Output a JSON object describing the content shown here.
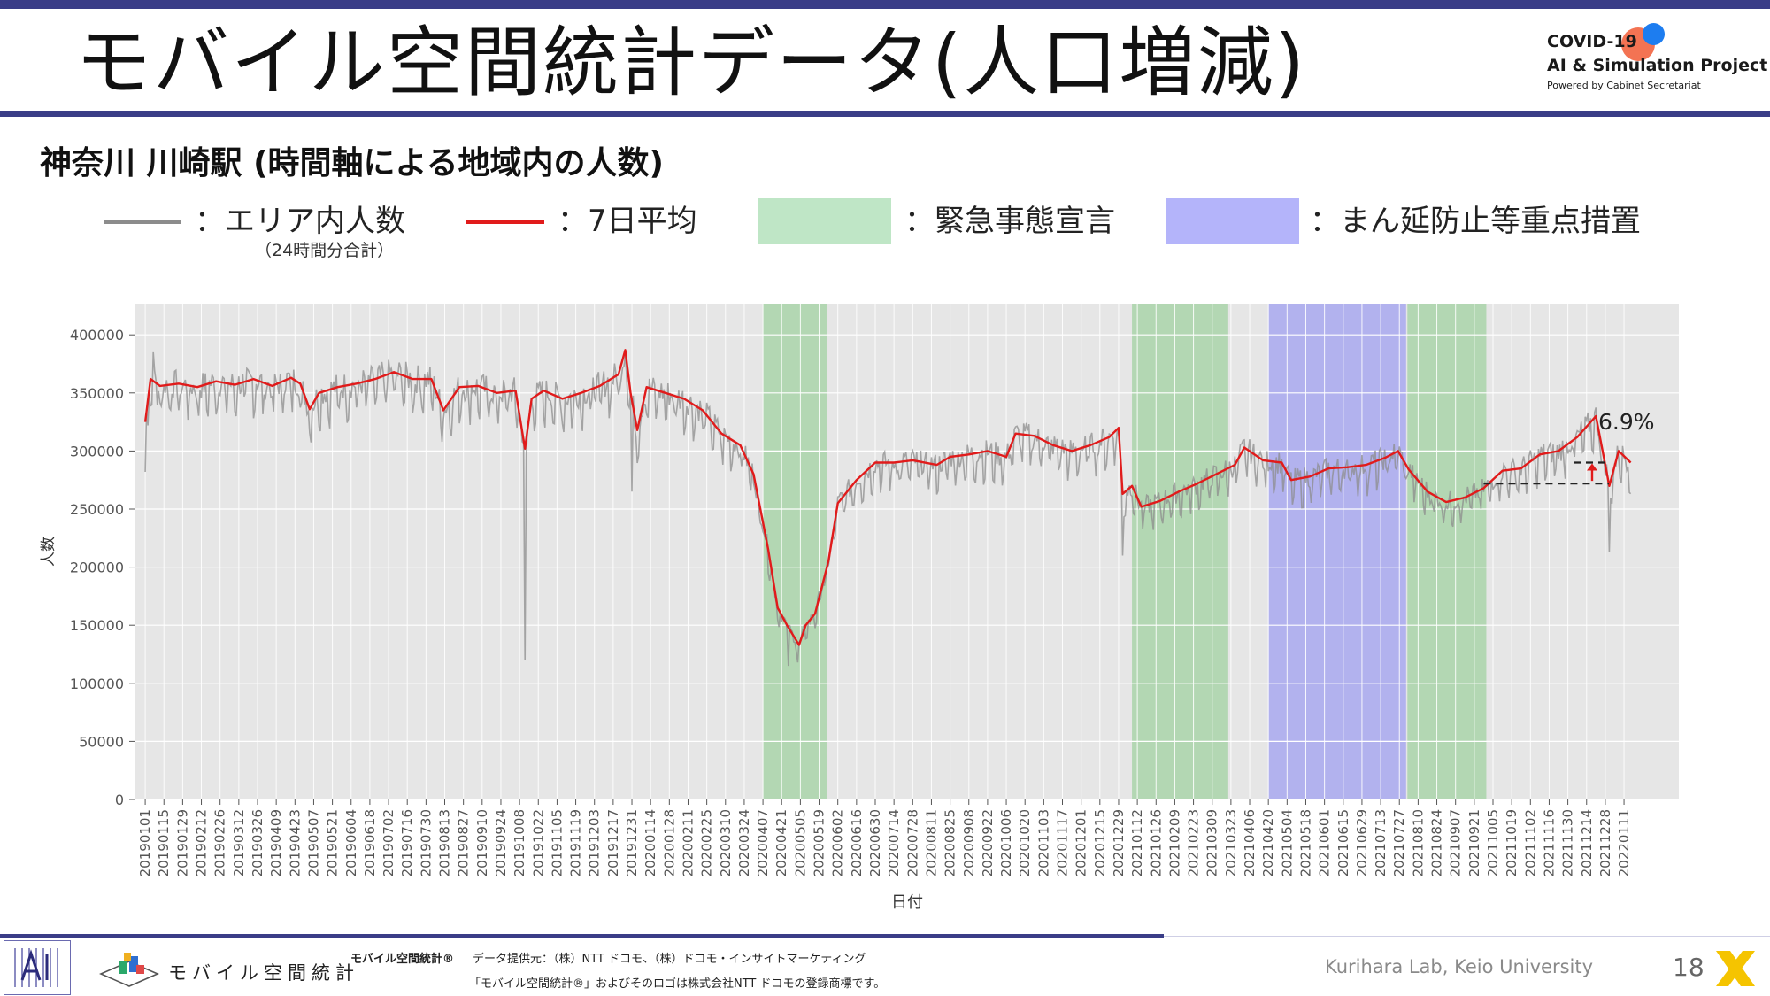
{
  "slide": {
    "title": "モバイル空間統計データ(人口増減)",
    "subtitle": "神奈川 川崎駅 (時間軸による地域内の人数)",
    "page_number": "18"
  },
  "project": {
    "line1": "COVID-19",
    "line2": "AI & Simulation Project",
    "line3": "Powered by Cabinet Secretariat"
  },
  "legend": {
    "raw_label": "：エリア内人数",
    "raw_note": "（24時間分合計）",
    "avg_label": "：7日平均",
    "emergency_label": "：緊急事態宣言",
    "priority_label": "：まん延防止等重点措置",
    "colors": {
      "raw": "#8c8c8c",
      "avg": "#e11b1b",
      "emergency": "#bfe6c6",
      "priority": "#b4b4fa"
    }
  },
  "footer": {
    "logo_text": "モバイル空間統計",
    "brand_small": "モバイル空間統計®",
    "data_source": "データ提供元：（株）NTT ドコモ、（株）ドコモ・インサイトマーケティング",
    "trademark": "「モバイル空間統計®」およびそのロゴは株式会社NTT ドコモの登録商標です。",
    "credit": "Kurihara Lab, Keio University"
  },
  "chart_data": {
    "type": "line",
    "title": "",
    "xlabel": "日付",
    "ylabel": "人数",
    "ylim": [
      0,
      425000
    ],
    "yticks": [
      0,
      50000,
      100000,
      150000,
      200000,
      250000,
      300000,
      350000,
      400000
    ],
    "ytick_labels": [
      "0",
      "50000",
      "100000",
      "150000",
      "200000",
      "250000",
      "300000",
      "350000",
      "400000"
    ],
    "xlim": [
      "2018-12-24",
      "2022-02-21"
    ],
    "xtick_labels": [
      "20190101",
      "20190115",
      "20190129",
      "20190212",
      "20190226",
      "20190312",
      "20190326",
      "20190409",
      "20190423",
      "20190507",
      "20190521",
      "20190604",
      "20190618",
      "20190702",
      "20190716",
      "20190730",
      "20190813",
      "20190827",
      "20190910",
      "20190924",
      "20191008",
      "20191022",
      "20191105",
      "20191119",
      "20191203",
      "20191217",
      "20191231",
      "20200114",
      "20200128",
      "20200211",
      "20200225",
      "20200310",
      "20200324",
      "20200407",
      "20200421",
      "20200505",
      "20200519",
      "20200602",
      "20200616",
      "20200630",
      "20200714",
      "20200728",
      "20200811",
      "20200825",
      "20200908",
      "20200922",
      "20201006",
      "20201020",
      "20201103",
      "20201117",
      "20201201",
      "20201215",
      "20201229",
      "20210112",
      "20210126",
      "20210209",
      "20210223",
      "20210309",
      "20210323",
      "20210406",
      "20210420",
      "20210504",
      "20210518",
      "20210601",
      "20210615",
      "20210629",
      "20210713",
      "20210727",
      "20210810",
      "20210824",
      "20210907",
      "20210921",
      "20211005",
      "20211019",
      "20211102",
      "20211116",
      "20211130",
      "20211214",
      "20211228",
      "20220111"
    ],
    "shaded_periods": [
      {
        "type": "emergency",
        "start": "2020-04-07",
        "end": "2020-05-25"
      },
      {
        "type": "emergency",
        "start": "2021-01-08",
        "end": "2021-03-21"
      },
      {
        "type": "priority",
        "start": "2021-04-20",
        "end": "2021-08-01"
      },
      {
        "type": "emergency",
        "start": "2021-08-02",
        "end": "2021-09-30"
      }
    ],
    "series": [
      {
        "kind": "avg",
        "points": [
          [
            "2019-01-01",
            325000
          ],
          [
            "2019-01-05",
            362000
          ],
          [
            "2019-01-12",
            356000
          ],
          [
            "2019-01-26",
            358000
          ],
          [
            "2019-02-09",
            355000
          ],
          [
            "2019-02-23",
            360000
          ],
          [
            "2019-03-09",
            357000
          ],
          [
            "2019-03-23",
            362000
          ],
          [
            "2019-04-06",
            356000
          ],
          [
            "2019-04-20",
            363000
          ],
          [
            "2019-04-27",
            358000
          ],
          [
            "2019-05-04",
            336000
          ],
          [
            "2019-05-11",
            350000
          ],
          [
            "2019-05-25",
            355000
          ],
          [
            "2019-06-08",
            358000
          ],
          [
            "2019-06-22",
            362000
          ],
          [
            "2019-07-06",
            368000
          ],
          [
            "2019-07-20",
            362000
          ],
          [
            "2019-08-03",
            362000
          ],
          [
            "2019-08-12",
            335000
          ],
          [
            "2019-08-24",
            355000
          ],
          [
            "2019-09-07",
            356000
          ],
          [
            "2019-09-21",
            350000
          ],
          [
            "2019-10-05",
            352000
          ],
          [
            "2019-10-12",
            302000
          ],
          [
            "2019-10-17",
            345000
          ],
          [
            "2019-10-26",
            352000
          ],
          [
            "2019-11-09",
            345000
          ],
          [
            "2019-11-23",
            350000
          ],
          [
            "2019-12-07",
            356000
          ],
          [
            "2019-12-21",
            366000
          ],
          [
            "2019-12-26",
            387000
          ],
          [
            "2019-12-30",
            350000
          ],
          [
            "2020-01-04",
            318000
          ],
          [
            "2020-01-11",
            355000
          ],
          [
            "2020-01-25",
            350000
          ],
          [
            "2020-02-08",
            345000
          ],
          [
            "2020-02-22",
            335000
          ],
          [
            "2020-03-07",
            315000
          ],
          [
            "2020-03-21",
            305000
          ],
          [
            "2020-03-31",
            280000
          ],
          [
            "2020-04-11",
            215000
          ],
          [
            "2020-04-18",
            165000
          ],
          [
            "2020-04-25",
            150000
          ],
          [
            "2020-05-04",
            133000
          ],
          [
            "2020-05-09",
            150000
          ],
          [
            "2020-05-16",
            160000
          ],
          [
            "2020-05-26",
            205000
          ],
          [
            "2020-06-02",
            255000
          ],
          [
            "2020-06-16",
            275000
          ],
          [
            "2020-06-30",
            290000
          ],
          [
            "2020-07-14",
            290000
          ],
          [
            "2020-07-28",
            292000
          ],
          [
            "2020-08-15",
            288000
          ],
          [
            "2020-08-25",
            295000
          ],
          [
            "2020-09-08",
            297000
          ],
          [
            "2020-09-22",
            300000
          ],
          [
            "2020-10-06",
            295000
          ],
          [
            "2020-10-13",
            315000
          ],
          [
            "2020-10-27",
            313000
          ],
          [
            "2020-11-10",
            305000
          ],
          [
            "2020-11-24",
            300000
          ],
          [
            "2020-12-08",
            305000
          ],
          [
            "2020-12-22",
            312000
          ],
          [
            "2020-12-29",
            320000
          ],
          [
            "2021-01-01",
            263000
          ],
          [
            "2021-01-08",
            270000
          ],
          [
            "2021-01-15",
            252000
          ],
          [
            "2021-01-29",
            257000
          ],
          [
            "2021-02-12",
            265000
          ],
          [
            "2021-02-26",
            272000
          ],
          [
            "2021-03-12",
            280000
          ],
          [
            "2021-03-26",
            288000
          ],
          [
            "2021-04-02",
            303000
          ],
          [
            "2021-04-16",
            292000
          ],
          [
            "2021-04-30",
            290000
          ],
          [
            "2021-05-07",
            275000
          ],
          [
            "2021-05-21",
            278000
          ],
          [
            "2021-06-04",
            285000
          ],
          [
            "2021-06-18",
            286000
          ],
          [
            "2021-07-02",
            288000
          ],
          [
            "2021-07-16",
            294000
          ],
          [
            "2021-07-26",
            300000
          ],
          [
            "2021-08-03",
            284000
          ],
          [
            "2021-08-17",
            265000
          ],
          [
            "2021-08-31",
            256000
          ],
          [
            "2021-09-14",
            260000
          ],
          [
            "2021-09-28",
            268000
          ],
          [
            "2021-10-12",
            283000
          ],
          [
            "2021-10-26",
            285000
          ],
          [
            "2021-11-09",
            297000
          ],
          [
            "2021-11-23",
            300000
          ],
          [
            "2021-12-07",
            312000
          ],
          [
            "2021-12-21",
            330000
          ],
          [
            "2021-12-31",
            270000
          ],
          [
            "2022-01-07",
            300000
          ],
          [
            "2022-01-16",
            290000
          ]
        ]
      },
      {
        "kind": "raw",
        "points": [
          [
            "2019-01-01",
            282000
          ],
          [
            "2019-01-03",
            322000
          ],
          [
            "2019-01-07",
            385000
          ],
          [
            "2019-01-10",
            340000
          ],
          [
            "2019-10-12",
            120000
          ],
          [
            "2019-10-14",
            320000
          ],
          [
            "2019-12-31",
            265000
          ],
          [
            "2020-01-03",
            312000
          ],
          [
            "2020-04-26",
            115000
          ],
          [
            "2020-05-03",
            118000
          ],
          [
            "2021-01-01",
            210000
          ],
          [
            "2021-12-31",
            213000
          ]
        ]
      }
    ],
    "annotations": [
      {
        "text": "6.9%",
        "kind": "percent_change",
        "value": 6.9
      },
      {
        "kind": "reference_level",
        "value": 272000
      },
      {
        "kind": "reference_level",
        "value": 290000
      }
    ]
  }
}
